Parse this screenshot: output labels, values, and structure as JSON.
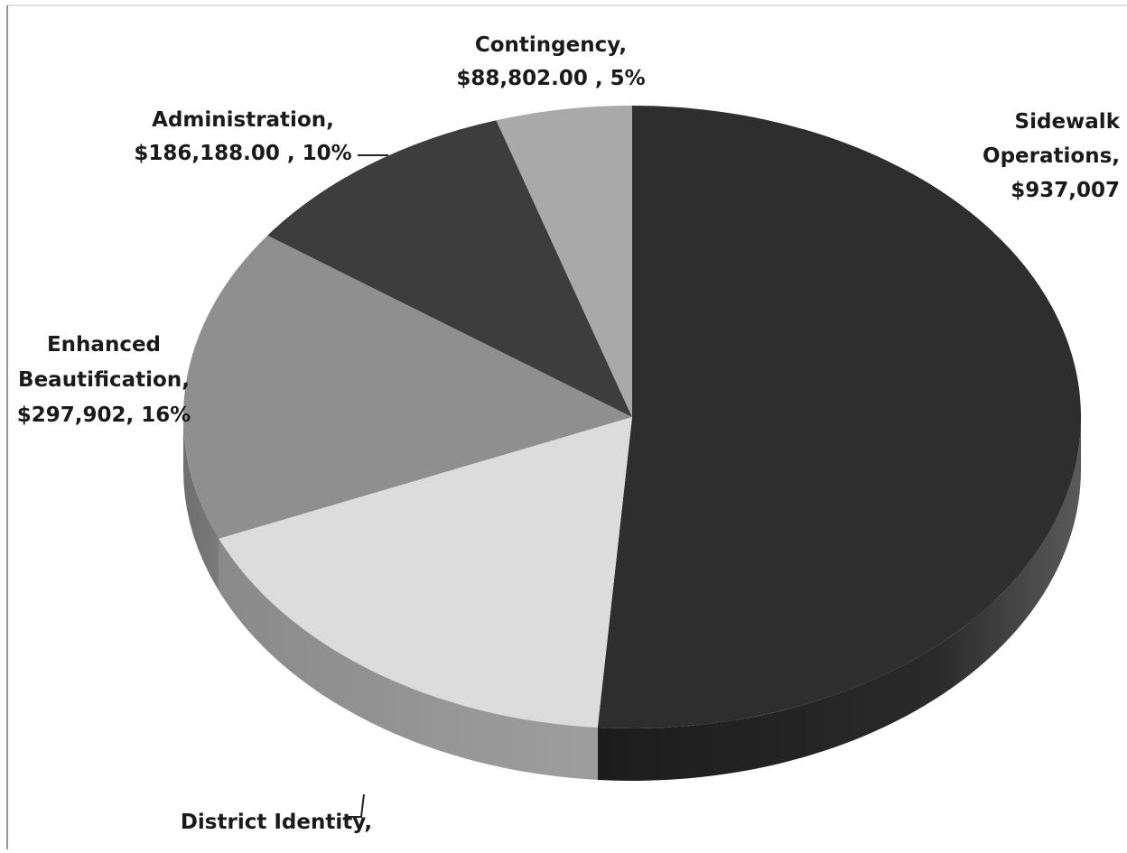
{
  "chart_data": {
    "type": "pie",
    "title": "",
    "slices": [
      {
        "label_lines": [
          "Sidewalk",
          "Operations,",
          "$937,007"
        ],
        "value": 937007,
        "percent": 0.5125,
        "color": "#2e2e2e"
      },
      {
        "label_lines": [
          "District Identity,"
        ],
        "value": 318000,
        "percent": 0.174,
        "color": "#dcdcdc"
      },
      {
        "label_lines": [
          "Enhanced",
          "Beautification,",
          "$297,902, 16%"
        ],
        "value": 297902,
        "percent": 0.163,
        "color": "#8f8f8f"
      },
      {
        "label_lines": [
          "Administration,",
          "$186,188.00 , 10%"
        ],
        "value": 186188,
        "percent": 0.102,
        "color": "#3d3d3d"
      },
      {
        "label_lines": [
          "Contingency,",
          "$88,802.00 , 5%"
        ],
        "value": 88802,
        "percent": 0.049,
        "color": "#a9a9a9"
      }
    ]
  }
}
